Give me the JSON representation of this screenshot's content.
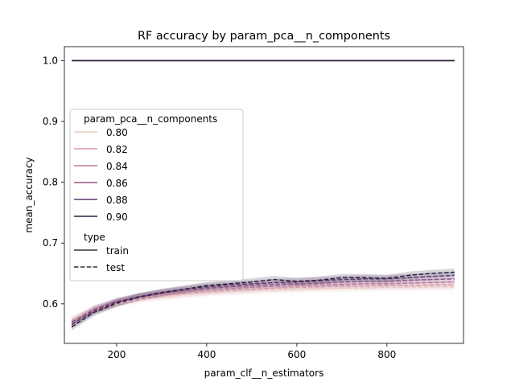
{
  "chart_data": {
    "type": "line",
    "title": "RF accuracy by param_pca__n_components",
    "xlabel": "param_clf__n_estimators",
    "ylabel": "mean_accuracy",
    "xlim": [
      84,
      970
    ],
    "ylim": [
      0.535,
      1.023
    ],
    "xticks": [
      200,
      400,
      600,
      800
    ],
    "yticks": [
      0.6,
      0.7,
      0.8,
      0.9,
      1.0
    ],
    "ytick_labels": [
      "0.6",
      "0.7",
      "0.8",
      "0.9",
      "1.0"
    ],
    "grid": false,
    "legend_position": "center-left",
    "legend": {
      "hue_title": "param_pca__n_components",
      "style_title": "type",
      "hue_labels": [
        "0.80",
        "0.82",
        "0.84",
        "0.86",
        "0.88",
        "0.90"
      ],
      "style_labels": [
        "train",
        "test"
      ]
    },
    "colors": [
      "#ebc9c3",
      "#d59aa7",
      "#b87a9b",
      "#8d5886",
      "#5d3a6d",
      "#2d1e3e"
    ],
    "x": [
      100,
      150,
      200,
      250,
      300,
      350,
      400,
      450,
      500,
      550,
      600,
      650,
      700,
      750,
      800,
      850,
      900,
      950
    ],
    "series": [
      {
        "name": "0.80",
        "type": "train",
        "values": [
          1.0,
          1.0,
          1.0,
          1.0,
          1.0,
          1.0,
          1.0,
          1.0,
          1.0,
          1.0,
          1.0,
          1.0,
          1.0,
          1.0,
          1.0,
          1.0,
          1.0,
          1.0
        ]
      },
      {
        "name": "0.82",
        "type": "train",
        "values": [
          1.0,
          1.0,
          1.0,
          1.0,
          1.0,
          1.0,
          1.0,
          1.0,
          1.0,
          1.0,
          1.0,
          1.0,
          1.0,
          1.0,
          1.0,
          1.0,
          1.0,
          1.0
        ]
      },
      {
        "name": "0.84",
        "type": "train",
        "values": [
          1.0,
          1.0,
          1.0,
          1.0,
          1.0,
          1.0,
          1.0,
          1.0,
          1.0,
          1.0,
          1.0,
          1.0,
          1.0,
          1.0,
          1.0,
          1.0,
          1.0,
          1.0
        ]
      },
      {
        "name": "0.86",
        "type": "train",
        "values": [
          1.0,
          1.0,
          1.0,
          1.0,
          1.0,
          1.0,
          1.0,
          1.0,
          1.0,
          1.0,
          1.0,
          1.0,
          1.0,
          1.0,
          1.0,
          1.0,
          1.0,
          1.0
        ]
      },
      {
        "name": "0.88",
        "type": "train",
        "values": [
          1.0,
          1.0,
          1.0,
          1.0,
          1.0,
          1.0,
          1.0,
          1.0,
          1.0,
          1.0,
          1.0,
          1.0,
          1.0,
          1.0,
          1.0,
          1.0,
          1.0,
          1.0
        ]
      },
      {
        "name": "0.90",
        "type": "train",
        "values": [
          1.0,
          1.0,
          1.0,
          1.0,
          1.0,
          1.0,
          1.0,
          1.0,
          1.0,
          1.0,
          1.0,
          1.0,
          1.0,
          1.0,
          1.0,
          1.0,
          1.0,
          1.0
        ]
      },
      {
        "name": "0.80",
        "type": "test",
        "values": [
          0.575,
          0.59,
          0.6,
          0.607,
          0.611,
          0.615,
          0.618,
          0.62,
          0.622,
          0.623,
          0.624,
          0.625,
          0.626,
          0.626,
          0.627,
          0.627,
          0.628,
          0.628
        ]
      },
      {
        "name": "0.82",
        "type": "test",
        "values": [
          0.572,
          0.592,
          0.603,
          0.61,
          0.614,
          0.617,
          0.62,
          0.622,
          0.624,
          0.626,
          0.627,
          0.628,
          0.629,
          0.629,
          0.63,
          0.63,
          0.631,
          0.631
        ]
      },
      {
        "name": "0.84",
        "type": "test",
        "values": [
          0.568,
          0.588,
          0.602,
          0.611,
          0.616,
          0.62,
          0.623,
          0.625,
          0.627,
          0.629,
          0.63,
          0.631,
          0.632,
          0.633,
          0.633,
          0.634,
          0.635,
          0.636
        ]
      },
      {
        "name": "0.86",
        "type": "test",
        "values": [
          0.57,
          0.591,
          0.604,
          0.612,
          0.618,
          0.622,
          0.626,
          0.628,
          0.63,
          0.632,
          0.633,
          0.634,
          0.636,
          0.637,
          0.637,
          0.639,
          0.64,
          0.641
        ]
      },
      {
        "name": "0.88",
        "type": "test",
        "values": [
          0.566,
          0.589,
          0.603,
          0.612,
          0.619,
          0.624,
          0.628,
          0.631,
          0.633,
          0.635,
          0.636,
          0.638,
          0.64,
          0.641,
          0.641,
          0.643,
          0.645,
          0.647
        ]
      },
      {
        "name": "0.90",
        "type": "test",
        "values": [
          0.562,
          0.586,
          0.601,
          0.611,
          0.618,
          0.624,
          0.63,
          0.633,
          0.636,
          0.64,
          0.637,
          0.639,
          0.643,
          0.643,
          0.642,
          0.647,
          0.65,
          0.652
        ]
      }
    ]
  }
}
